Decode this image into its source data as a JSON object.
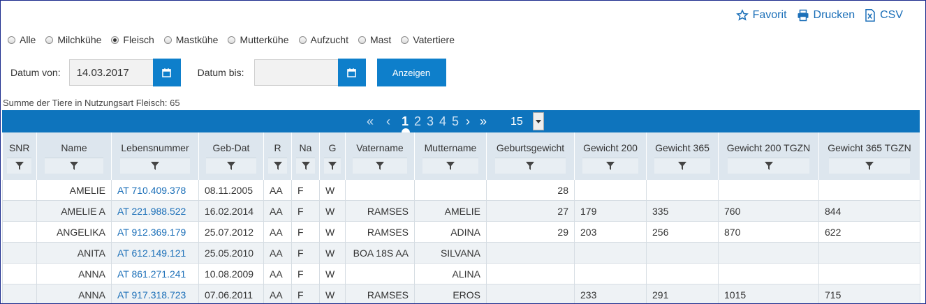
{
  "topbar": {
    "favorit": "Favorit",
    "drucken": "Drucken",
    "csv": "CSV"
  },
  "radios": [
    {
      "label": "Alle",
      "checked": false
    },
    {
      "label": "Milchkühe",
      "checked": false
    },
    {
      "label": "Fleisch",
      "checked": true
    },
    {
      "label": "Mastkühe",
      "checked": false
    },
    {
      "label": "Mutterkühe",
      "checked": false
    },
    {
      "label": "Aufzucht",
      "checked": false
    },
    {
      "label": "Mast",
      "checked": false
    },
    {
      "label": "Vatertiere",
      "checked": false
    }
  ],
  "filters": {
    "from_label": "Datum von:",
    "from_value": "14.03.2017",
    "to_label": "Datum bis:",
    "to_value": "",
    "show_button": "Anzeigen"
  },
  "summary": "Summe der Tiere in Nutzungsart Fleisch: 65",
  "pager": {
    "first": "«",
    "prev": "‹",
    "pages": [
      "1",
      "2",
      "3",
      "4",
      "5"
    ],
    "current": "1",
    "next": "›",
    "last": "»",
    "page_size": "15"
  },
  "columns": [
    "SNR",
    "Name",
    "Lebensnummer",
    "Geb-Dat",
    "R",
    "Na",
    "G",
    "Vatername",
    "Muttername",
    "Geburtsgewicht",
    "Gewicht 200",
    "Gewicht 365",
    "Gewicht 200 TGZN",
    "Gewicht 365 TGZN"
  ],
  "rows": [
    {
      "snr": "",
      "name": "AMELIE",
      "lnr": "AT 710.409.378",
      "geb": "08.11.2005",
      "r": "AA",
      "na": "F",
      "g": "W",
      "vater": "",
      "mutter": "",
      "gg": "28",
      "g200": "",
      "g365": "",
      "g200t": "",
      "g365t": ""
    },
    {
      "snr": "",
      "name": "AMELIE A",
      "lnr": "AT 221.988.522",
      "geb": "16.02.2014",
      "r": "AA",
      "na": "F",
      "g": "W",
      "vater": "RAMSES",
      "mutter": "AMELIE",
      "gg": "27",
      "g200": "179",
      "g365": "335",
      "g200t": "760",
      "g365t": "844"
    },
    {
      "snr": "",
      "name": "ANGELIKA",
      "lnr": "AT 912.369.179",
      "geb": "25.07.2012",
      "r": "AA",
      "na": "F",
      "g": "W",
      "vater": "RAMSES",
      "mutter": "ADINA",
      "gg": "29",
      "g200": "203",
      "g365": "256",
      "g200t": "870",
      "g365t": "622"
    },
    {
      "snr": "",
      "name": "ANITA",
      "lnr": "AT 612.149.121",
      "geb": "25.05.2010",
      "r": "AA",
      "na": "F",
      "g": "W",
      "vater": "BOA 18S AA",
      "mutter": "SILVANA",
      "gg": "",
      "g200": "",
      "g365": "",
      "g200t": "",
      "g365t": ""
    },
    {
      "snr": "",
      "name": "ANNA",
      "lnr": "AT 861.271.241",
      "geb": "10.08.2009",
      "r": "AA",
      "na": "F",
      "g": "W",
      "vater": "",
      "mutter": "ALINA",
      "gg": "",
      "g200": "",
      "g365": "",
      "g200t": "",
      "g365t": ""
    },
    {
      "snr": "",
      "name": "ANNA",
      "lnr": "AT 917.318.723",
      "geb": "07.06.2011",
      "r": "AA",
      "na": "F",
      "g": "W",
      "vater": "RAMSES",
      "mutter": "EROS",
      "gg": "",
      "g200": "233",
      "g365": "291",
      "g200t": "1015",
      "g365t": "715"
    }
  ],
  "colors": {
    "accent": "#0e7fcb",
    "pager": "#0e74bd",
    "link": "#1b6fb8",
    "header_bg": "#dde6ee"
  }
}
